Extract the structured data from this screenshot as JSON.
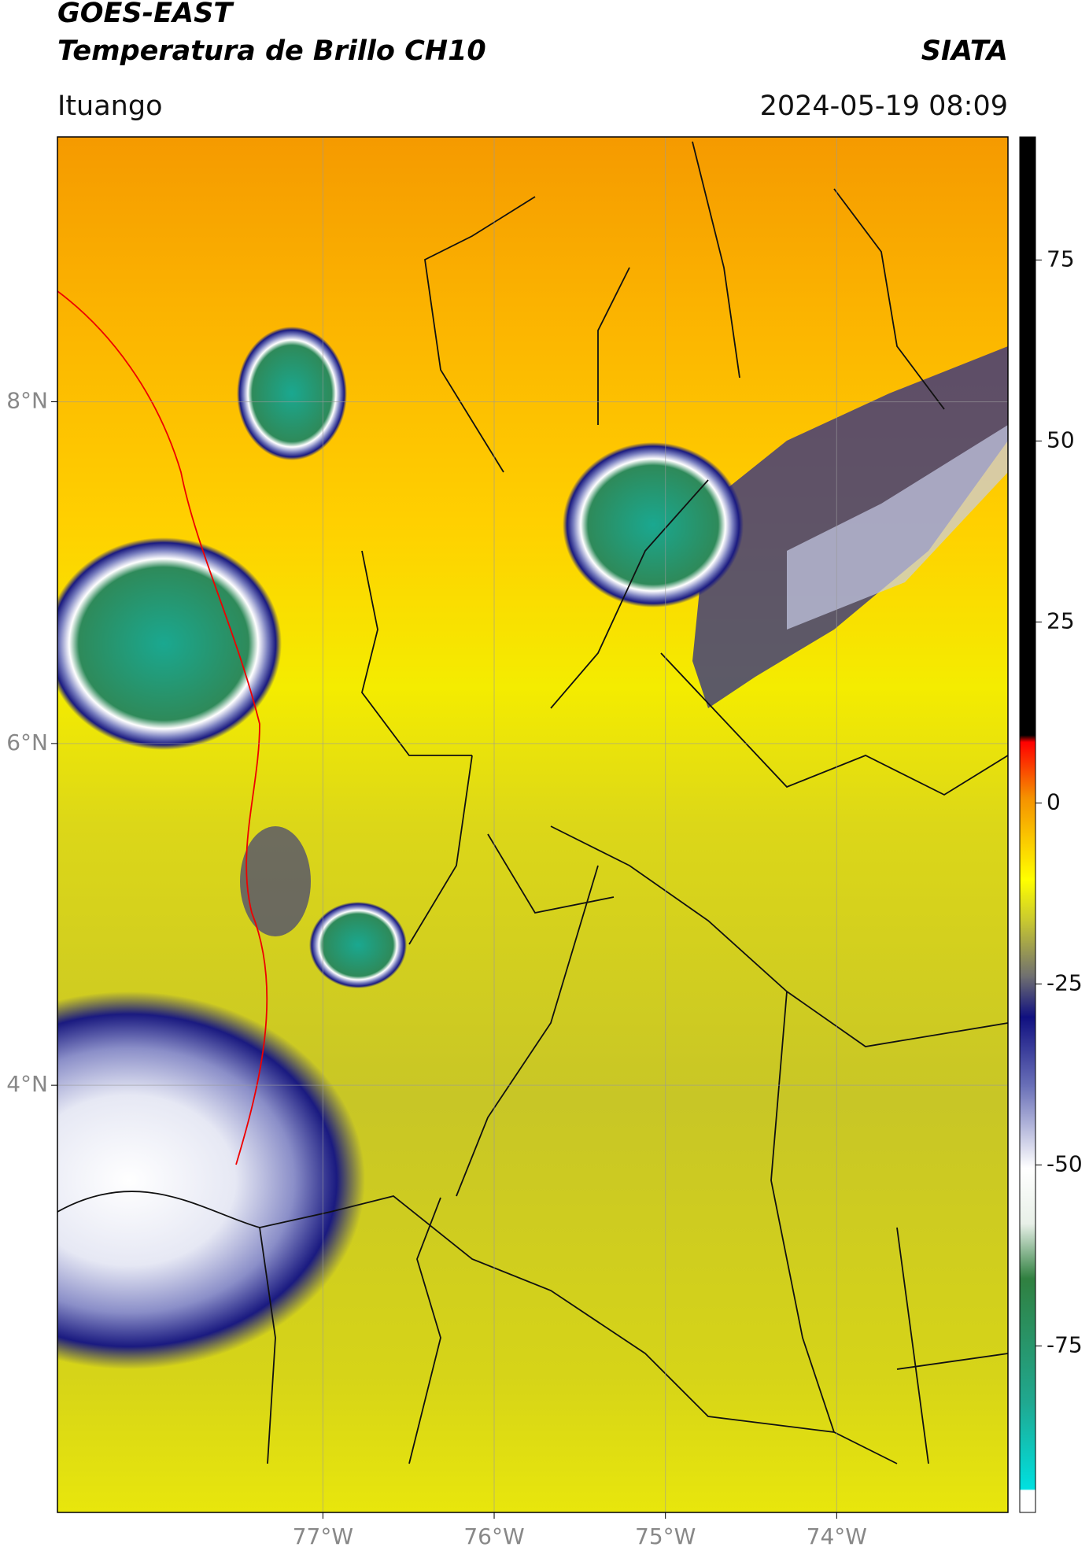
{
  "header": {
    "title": "GOES-EAST",
    "subtitle": "Temperatura de Brillo CH10",
    "brand": "SIATA",
    "location": "Ituango",
    "timestamp": "2024-05-19 08:09"
  },
  "map": {
    "xlim": [
      -78.55,
      -73.0
    ],
    "ylim": [
      1.5,
      9.55
    ],
    "xticks": [
      {
        "value": -77,
        "label": "77°W"
      },
      {
        "value": -76,
        "label": "76°W"
      },
      {
        "value": -75,
        "label": "75°W"
      },
      {
        "value": -74,
        "label": "74°W"
      }
    ],
    "yticks": [
      {
        "value": 8,
        "label": "8°N"
      },
      {
        "value": 6,
        "label": "6°N"
      },
      {
        "value": 4,
        "label": "4°N"
      }
    ],
    "grid": true
  },
  "colorbar": {
    "lim": [
      -98,
      92
    ],
    "ticks": [
      75,
      50,
      25,
      0,
      -25,
      -50,
      -75
    ]
  }
}
